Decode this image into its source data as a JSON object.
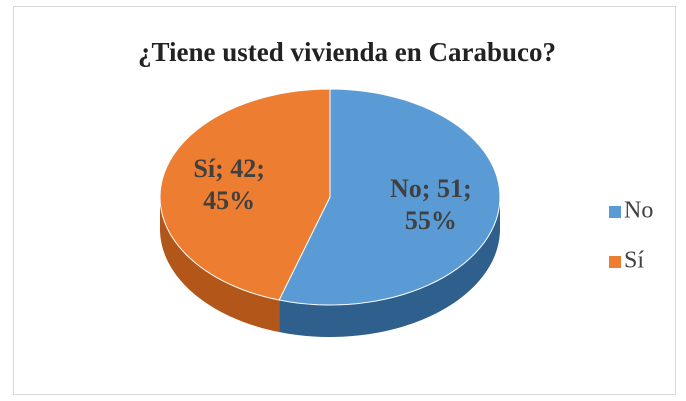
{
  "chart_data": {
    "type": "pie",
    "title": "¿Tiene usted vivienda en Carabuco?",
    "categories": [
      "No",
      "Sí"
    ],
    "values": [
      51,
      42
    ],
    "value_labels": [
      "No; 51; 55%",
      "Sí; 42; 45%"
    ],
    "colors": [
      "#5b9bd5",
      "#ed7d31"
    ],
    "side_colors": [
      "#2f5f8c",
      "#b3561a"
    ],
    "legend": "right",
    "three_d": true
  }
}
